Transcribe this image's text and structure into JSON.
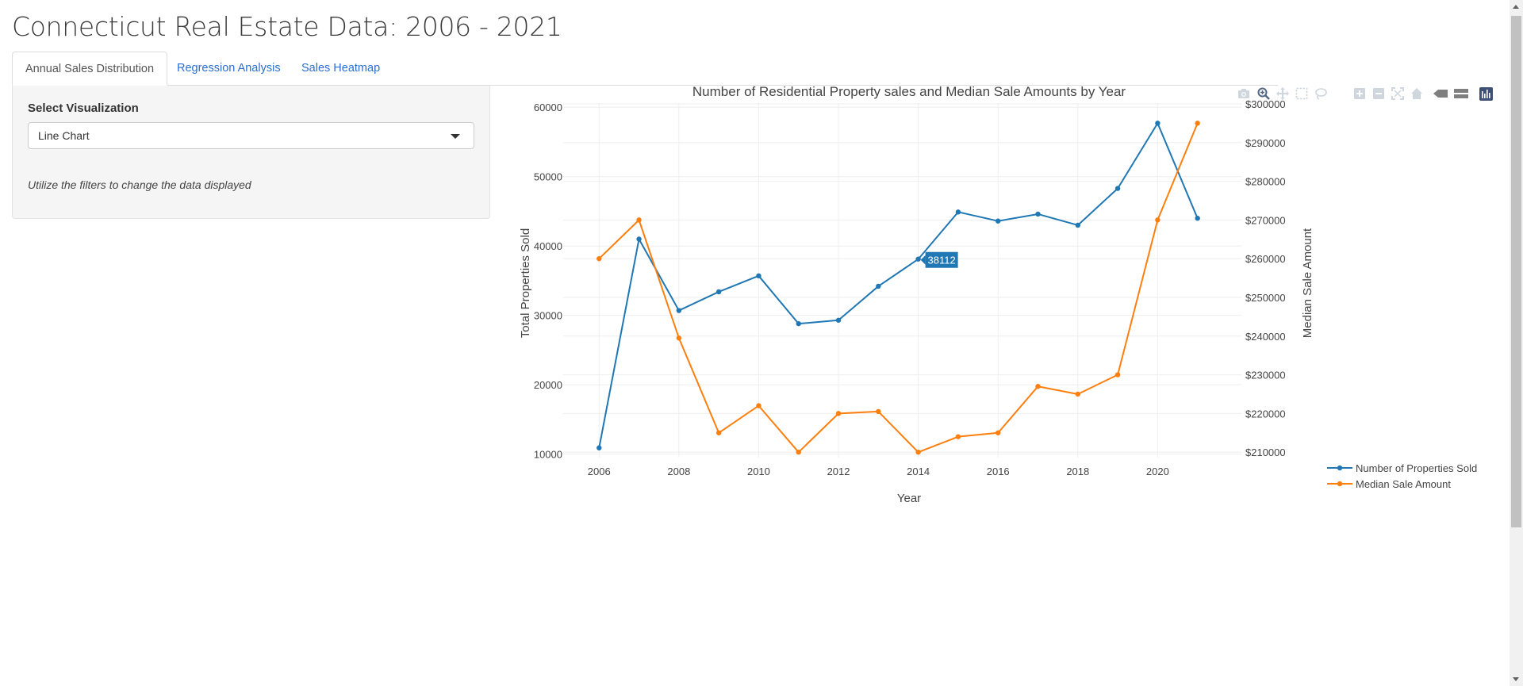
{
  "page": {
    "title": "Connecticut Real Estate Data: 2006 - 2021"
  },
  "tabs": [
    {
      "label": "Annual Sales Distribution",
      "active": true
    },
    {
      "label": "Regression Analysis",
      "active": false
    },
    {
      "label": "Sales Heatmap",
      "active": false
    }
  ],
  "sidebar": {
    "select_label": "Select Visualization",
    "selected_option": "Line Chart",
    "help_text": "Utilize the filters to change the data displayed"
  },
  "modebar": {
    "icons": [
      "camera-icon",
      "zoom-icon",
      "pan-icon",
      "box-select-icon",
      "lasso-select-icon",
      "zoom-in-icon",
      "zoom-out-icon",
      "autoscale-icon",
      "reset-axes-icon",
      "spike-lines-icon",
      "compare-hover-icon",
      "plotly-logo-icon"
    ]
  },
  "hover": {
    "label": "38112",
    "year": 2014
  },
  "chart_data": {
    "type": "line",
    "title": "Number of Residential Property sales and Median Sale Amounts by Year",
    "xlabel": "Year",
    "ylabel": "Total Properties Sold",
    "y2label": "Median Sale Amount",
    "x": [
      2006,
      2007,
      2008,
      2009,
      2010,
      2011,
      2012,
      2013,
      2014,
      2015,
      2016,
      2017,
      2018,
      2019,
      2020,
      2021
    ],
    "xticks": [
      "2006",
      "2008",
      "2010",
      "2012",
      "2014",
      "2016",
      "2018",
      "2020"
    ],
    "xlim": [
      2005.1,
      2022.1
    ],
    "ylim": [
      9500,
      60600
    ],
    "yticks": [
      "10000",
      "20000",
      "30000",
      "40000",
      "50000",
      "60000"
    ],
    "y2lim": [
      208600,
      300200
    ],
    "y2ticks": [
      "$210000",
      "$220000",
      "$230000",
      "$240000",
      "$250000",
      "$260000",
      "$270000",
      "$280000",
      "$290000",
      "$300000"
    ],
    "series": [
      {
        "name": "Number of Properties Sold",
        "axis": "y",
        "color": "#1f77b4",
        "values": [
          10900,
          41000,
          30700,
          33400,
          35700,
          28800,
          29300,
          34200,
          38112,
          44900,
          43600,
          44600,
          43000,
          48300,
          57700,
          44000
        ]
      },
      {
        "name": "Median Sale Amount",
        "axis": "y2",
        "color": "#ff7f0e",
        "values": [
          260000,
          270000,
          239500,
          215000,
          222000,
          210000,
          220000,
          220500,
          210000,
          214000,
          215000,
          227000,
          225000,
          230000,
          270000,
          295000
        ]
      }
    ],
    "grid": true,
    "legend_position": "right"
  }
}
